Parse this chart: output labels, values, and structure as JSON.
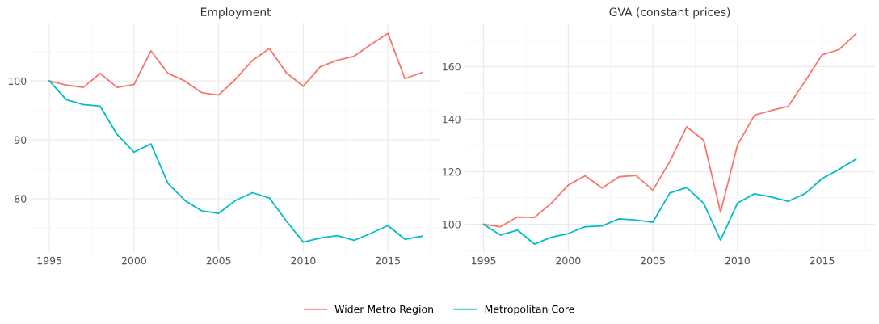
{
  "chart_data": [
    {
      "type": "line",
      "title": "Employment",
      "x": [
        1995,
        1996,
        1997,
        1998,
        1999,
        2000,
        2001,
        2002,
        2003,
        2004,
        2005,
        2006,
        2007,
        2008,
        2009,
        2010,
        2011,
        2012,
        2013,
        2014,
        2015,
        2016,
        2017
      ],
      "series": [
        {
          "name": "Wider Metro Region",
          "color": "#f8766d",
          "values": [
            100,
            99.3,
            98.9,
            101.3,
            98.9,
            99.4,
            105.1,
            101.3,
            100,
            98.0,
            97.6,
            100.3,
            103.5,
            105.5,
            101.4,
            99.1,
            102.4,
            103.5,
            104.2,
            106.2,
            108.1,
            100.4,
            101.4
          ]
        },
        {
          "name": "Metropolitan Core",
          "color": "#00bfc4",
          "values": [
            100,
            96.8,
            96.0,
            95.7,
            90.9,
            87.9,
            89.3,
            82.6,
            79.7,
            77.9,
            77.5,
            79.7,
            81.0,
            80.1,
            76.2,
            72.6,
            73.3,
            73.7,
            72.9,
            74.1,
            75.4,
            73.1,
            73.6
          ]
        }
      ],
      "xlim": [
        1993.9,
        2018.1
      ],
      "xticks": [
        1995,
        2000,
        2005,
        2010,
        2015
      ],
      "ylim": [
        70.8,
        109.9
      ],
      "yticks": [
        80,
        90,
        100
      ],
      "grid": true,
      "legend": "bottom"
    },
    {
      "type": "line",
      "title": "GVA (constant prices)",
      "x": [
        1995,
        1996,
        1997,
        1998,
        1999,
        2000,
        2001,
        2002,
        2003,
        2004,
        2005,
        2006,
        2007,
        2008,
        2009,
        2010,
        2011,
        2012,
        2013,
        2014,
        2015,
        2016,
        2017
      ],
      "series": [
        {
          "name": "Wider Metro Region",
          "color": "#f8766d",
          "values": [
            100,
            99.1,
            102.8,
            102.6,
            108.0,
            114.9,
            118.5,
            113.8,
            118.1,
            118.6,
            113.0,
            123.9,
            137.1,
            132.0,
            104.6,
            130.2,
            141.5,
            143.3,
            144.9,
            154.5,
            164.5,
            166.5,
            172.5
          ]
        },
        {
          "name": "Metropolitan Core",
          "color": "#00bfc4",
          "values": [
            100,
            95.9,
            97.8,
            92.5,
            95.1,
            96.5,
            99.1,
            99.4,
            102.1,
            101.6,
            100.8,
            111.9,
            114.0,
            108.0,
            94.0,
            108.1,
            111.6,
            110.4,
            108.8,
            111.7,
            117.4,
            120.9,
            124.8
          ]
        }
      ],
      "xlim": [
        1993.9,
        2018.1
      ],
      "xticks": [
        1995,
        2000,
        2005,
        2010,
        2015
      ],
      "ylim": [
        89.2,
        176.7
      ],
      "yticks": [
        100,
        120,
        140,
        160
      ],
      "grid": true,
      "legend": "bottom"
    }
  ]
}
